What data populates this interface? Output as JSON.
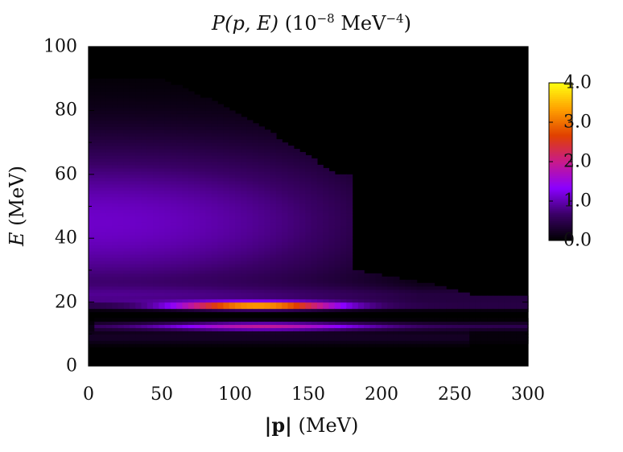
{
  "chart_data": {
    "type": "heatmap",
    "title": "P(p, E) (10^-8 MeV^-4)",
    "title_parts": {
      "main": "P(p, E)",
      "unit_pre": "(10",
      "unit_exp1": "−8",
      "unit_mid": " MeV",
      "unit_exp2": "−4",
      "unit_post": ")"
    },
    "xlabel": "|p| (MeV)",
    "xlabel_parts": {
      "main": "|p|",
      "unit": "(MeV)"
    },
    "ylabel": "E (MeV)",
    "ylabel_parts": {
      "main": "E",
      "unit": "(MeV)"
    },
    "xlim": [
      0,
      300
    ],
    "ylim": [
      0,
      100
    ],
    "x_ticks": [
      "0",
      "50",
      "100",
      "150",
      "200",
      "250",
      "300"
    ],
    "y_ticks": [
      "0",
      "20",
      "40",
      "60",
      "80",
      "100"
    ],
    "colorbar": {
      "range": [
        0.0,
        4.0
      ],
      "ticks": [
        "0.0",
        "1.0",
        "2.0",
        "3.0",
        "4.0"
      ],
      "colormap": [
        "#000000",
        "#3a0066",
        "#8a00ff",
        "#c81a8c",
        "#e04000",
        "#ffa000",
        "#ffff10"
      ]
    },
    "grid": false,
    "features": [
      {
        "name": "narrow band",
        "E": 19,
        "p_range": [
          0,
          300
        ],
        "peak_value": 4.0,
        "peak_p": 115
      },
      {
        "name": "lower band",
        "E": 12.5,
        "p_range": [
          5,
          300
        ],
        "peak_value": 1.9,
        "peak_p": 120
      },
      {
        "name": "broad continuum",
        "E_range": [
          22,
          90
        ],
        "p_range": [
          0,
          182
        ],
        "peak_value": 1.1
      }
    ]
  }
}
